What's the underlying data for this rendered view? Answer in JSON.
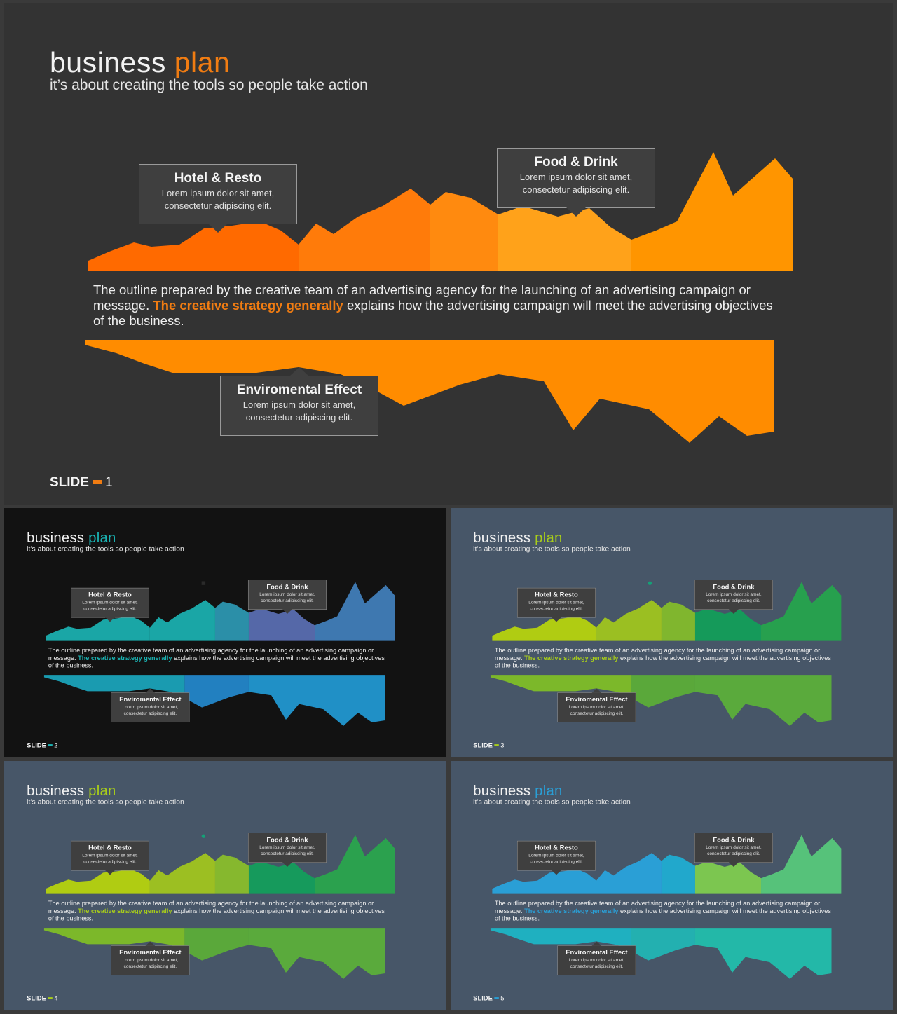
{
  "content": {
    "title_word1": "business",
    "title_word2": "plan",
    "subtitle": "it’s about creating the tools so people take action",
    "body_pre": "The outline prepared by the creative team of an advertising agency for the launching of an advertising campaign or message.",
    "body_highlight": "The creative strategy generally",
    "body_post": "explains how the advertising campaign will meet the advertising objectives of the business.",
    "callouts": {
      "hotel": {
        "title": "Hotel & Resto",
        "line1": "Lorem ipsum dolor sit amet,",
        "line2": "consectetur adipiscing elit."
      },
      "food": {
        "title": "Food & Drink",
        "line1": "Lorem ipsum dolor sit amet,",
        "line2": "consectetur adipiscing elit."
      },
      "env": {
        "title": "Enviromental Effect",
        "line1": "Lorem ipsum dolor sit amet,",
        "line2": "consectetur adipiscing elit."
      }
    },
    "slide_label": "SLIDE"
  },
  "slides": [
    {
      "number": "1",
      "bg": "#333333",
      "accent": "#f07c12",
      "top_colors": [
        "#ff6a00",
        "#ff7b0a",
        "#ff8a0f",
        "#ffa21a",
        "#ff9500"
      ],
      "bottom_colors": [
        "#ff8c00",
        "#ff8c00",
        "#ff8c00"
      ],
      "dot_color": ""
    },
    {
      "number": "2",
      "bg": "#121212",
      "accent": "#1ab3b3",
      "top_colors": [
        "#1aa6a6",
        "#1aa6a6",
        "#2b8fa8",
        "#5568a8",
        "#3e78b0"
      ],
      "bottom_colors": [
        "#1a9bb0",
        "#2280c0",
        "#2090c6"
      ],
      "dot_color": "#2a2a2a"
    },
    {
      "number": "3",
      "bg": "#475668",
      "accent": "#a8cd1a",
      "top_colors": [
        "#b0cc12",
        "#9bbf22",
        "#80b62e",
        "#159a5a",
        "#27a04e"
      ],
      "bottom_colors": [
        "#7cb82a",
        "#5aa83a",
        "#5aaa3c"
      ],
      "dot_color": "#15a077"
    },
    {
      "number": "4",
      "bg": "#475668",
      "accent": "#a8cd1a",
      "top_colors": [
        "#b0cc12",
        "#9cbf22",
        "#86b82e",
        "#169a5c",
        "#2ba14e"
      ],
      "bottom_colors": [
        "#7cb82a",
        "#5aa83a",
        "#5aaa3c"
      ],
      "dot_color": "#15a077"
    },
    {
      "number": "5",
      "bg": "#475668",
      "accent": "#2a9fd6",
      "top_colors": [
        "#2a9fd6",
        "#2a9fd6",
        "#21a8cc",
        "#7cc650",
        "#56c27a"
      ],
      "bottom_colors": [
        "#1fb0c0",
        "#23b0b0",
        "#23b8a8"
      ],
      "dot_color": ""
    }
  ]
}
